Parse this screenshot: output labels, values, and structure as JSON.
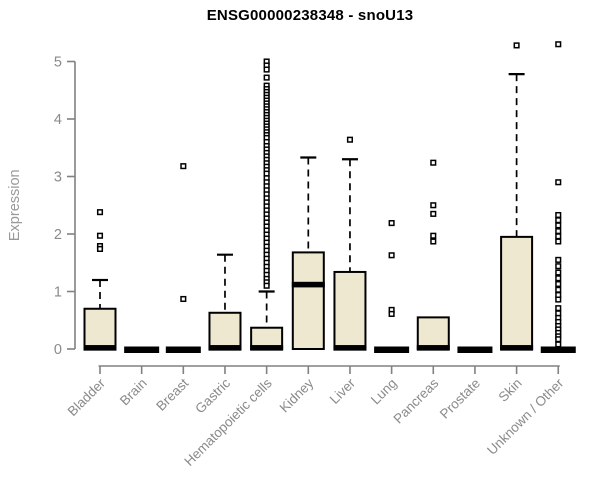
{
  "chart_data": {
    "type": "boxplot",
    "title": "ENSG00000238348 - snoU13",
    "ylabel": "Expression",
    "xlabel": "",
    "ylim": [
      0,
      5.35
    ],
    "yticks": [
      0,
      1,
      2,
      3,
      4,
      5
    ],
    "grid": false,
    "legend": null,
    "colors": {
      "box_fill": "#ede8cf",
      "box_stroke": "#000000",
      "median": "#000000",
      "whisker": "#000000",
      "outlier_fill": "#ffffff",
      "outlier_stroke": "#000000",
      "axis": "#818181",
      "tick_label": "#8a8a8a",
      "axis_label": "#999999",
      "title": "#000000",
      "background": "#ffffff"
    },
    "categories": [
      "Bladder",
      "Brain",
      "Breast",
      "Gastric",
      "Hematopoietic cells",
      "Kidney",
      "Liver",
      "Lung",
      "Pancreas",
      "Prostate",
      "Skin",
      "Unknown / Other"
    ],
    "series": [
      {
        "category": "Bladder",
        "q1": 0,
        "median": 0.02,
        "q3": 0.7,
        "whisker_low": 0,
        "whisker_high": 1.2,
        "outliers": [
          2.38,
          1.97,
          1.79,
          1.74
        ]
      },
      {
        "category": "Brain",
        "q1": 0,
        "median": 0,
        "q3": 0,
        "whisker_low": 0,
        "whisker_high": 0,
        "outliers": []
      },
      {
        "category": "Breast",
        "q1": 0,
        "median": 0,
        "q3": 0,
        "whisker_low": 0,
        "whisker_high": 0,
        "outliers": [
          3.18,
          0.87
        ]
      },
      {
        "category": "Gastric",
        "q1": 0,
        "median": 0.02,
        "q3": 0.63,
        "whisker_low": 0,
        "whisker_high": 1.64,
        "outliers": []
      },
      {
        "category": "Hematopoietic cells",
        "q1": 0,
        "median": 0.02,
        "q3": 0.37,
        "whisker_low": 0,
        "whisker_high": 1.0,
        "outliers": [
          5.0,
          4.93,
          4.86,
          4.72,
          4.58,
          4.52,
          4.47,
          4.42,
          4.37,
          4.32,
          4.27,
          4.22,
          4.17,
          4.12,
          4.07,
          4.02,
          3.97,
          3.92,
          3.87,
          3.82,
          3.77,
          3.72,
          3.67,
          3.6,
          3.53,
          3.47,
          3.41,
          3.35,
          3.29,
          3.23,
          3.17,
          3.11,
          3.05,
          2.97,
          2.9,
          2.83,
          2.76,
          2.69,
          2.62,
          2.55,
          2.48,
          2.41,
          2.34,
          2.27,
          2.2,
          2.13,
          2.06,
          1.99,
          1.92,
          1.85,
          1.78,
          1.71,
          1.64,
          1.57,
          1.5,
          1.43,
          1.36,
          1.29,
          1.22,
          1.16,
          1.1
        ]
      },
      {
        "category": "Kidney",
        "q1": 0,
        "median": 1.12,
        "q3": 1.68,
        "whisker_low": 0,
        "whisker_high": 3.33,
        "outliers": []
      },
      {
        "category": "Liver",
        "q1": 0,
        "median": 0.02,
        "q3": 1.34,
        "whisker_low": 0,
        "whisker_high": 3.3,
        "outliers": [
          3.64
        ]
      },
      {
        "category": "Lung",
        "q1": 0,
        "median": 0,
        "q3": 0,
        "whisker_low": 0,
        "whisker_high": 0,
        "outliers": [
          2.19,
          1.63,
          0.68,
          0.61
        ]
      },
      {
        "category": "Pancreas",
        "q1": 0,
        "median": 0.02,
        "q3": 0.55,
        "whisker_low": 0,
        "whisker_high": 0.55,
        "outliers": [
          3.24,
          2.5,
          2.35,
          1.97,
          1.87
        ]
      },
      {
        "category": "Prostate",
        "q1": 0,
        "median": 0,
        "q3": 0,
        "whisker_low": 0,
        "whisker_high": 0,
        "outliers": []
      },
      {
        "category": "Skin",
        "q1": 0,
        "median": 0.02,
        "q3": 1.95,
        "whisker_low": 0,
        "whisker_high": 4.78,
        "outliers": [
          5.28
        ]
      },
      {
        "category": "Unknown / Other",
        "q1": 0,
        "median": 0,
        "q3": 0,
        "whisker_low": 0,
        "whisker_high": 0,
        "outliers": [
          5.3,
          2.9,
          2.33,
          2.24,
          2.15,
          2.05,
          1.96,
          1.87,
          1.55,
          1.44,
          1.33,
          1.23,
          1.13,
          1.03,
          0.94,
          0.86,
          0.71,
          0.62,
          0.54,
          0.47,
          0.4,
          0.34,
          0.28,
          0.22,
          0.17,
          0.08
        ]
      }
    ]
  }
}
